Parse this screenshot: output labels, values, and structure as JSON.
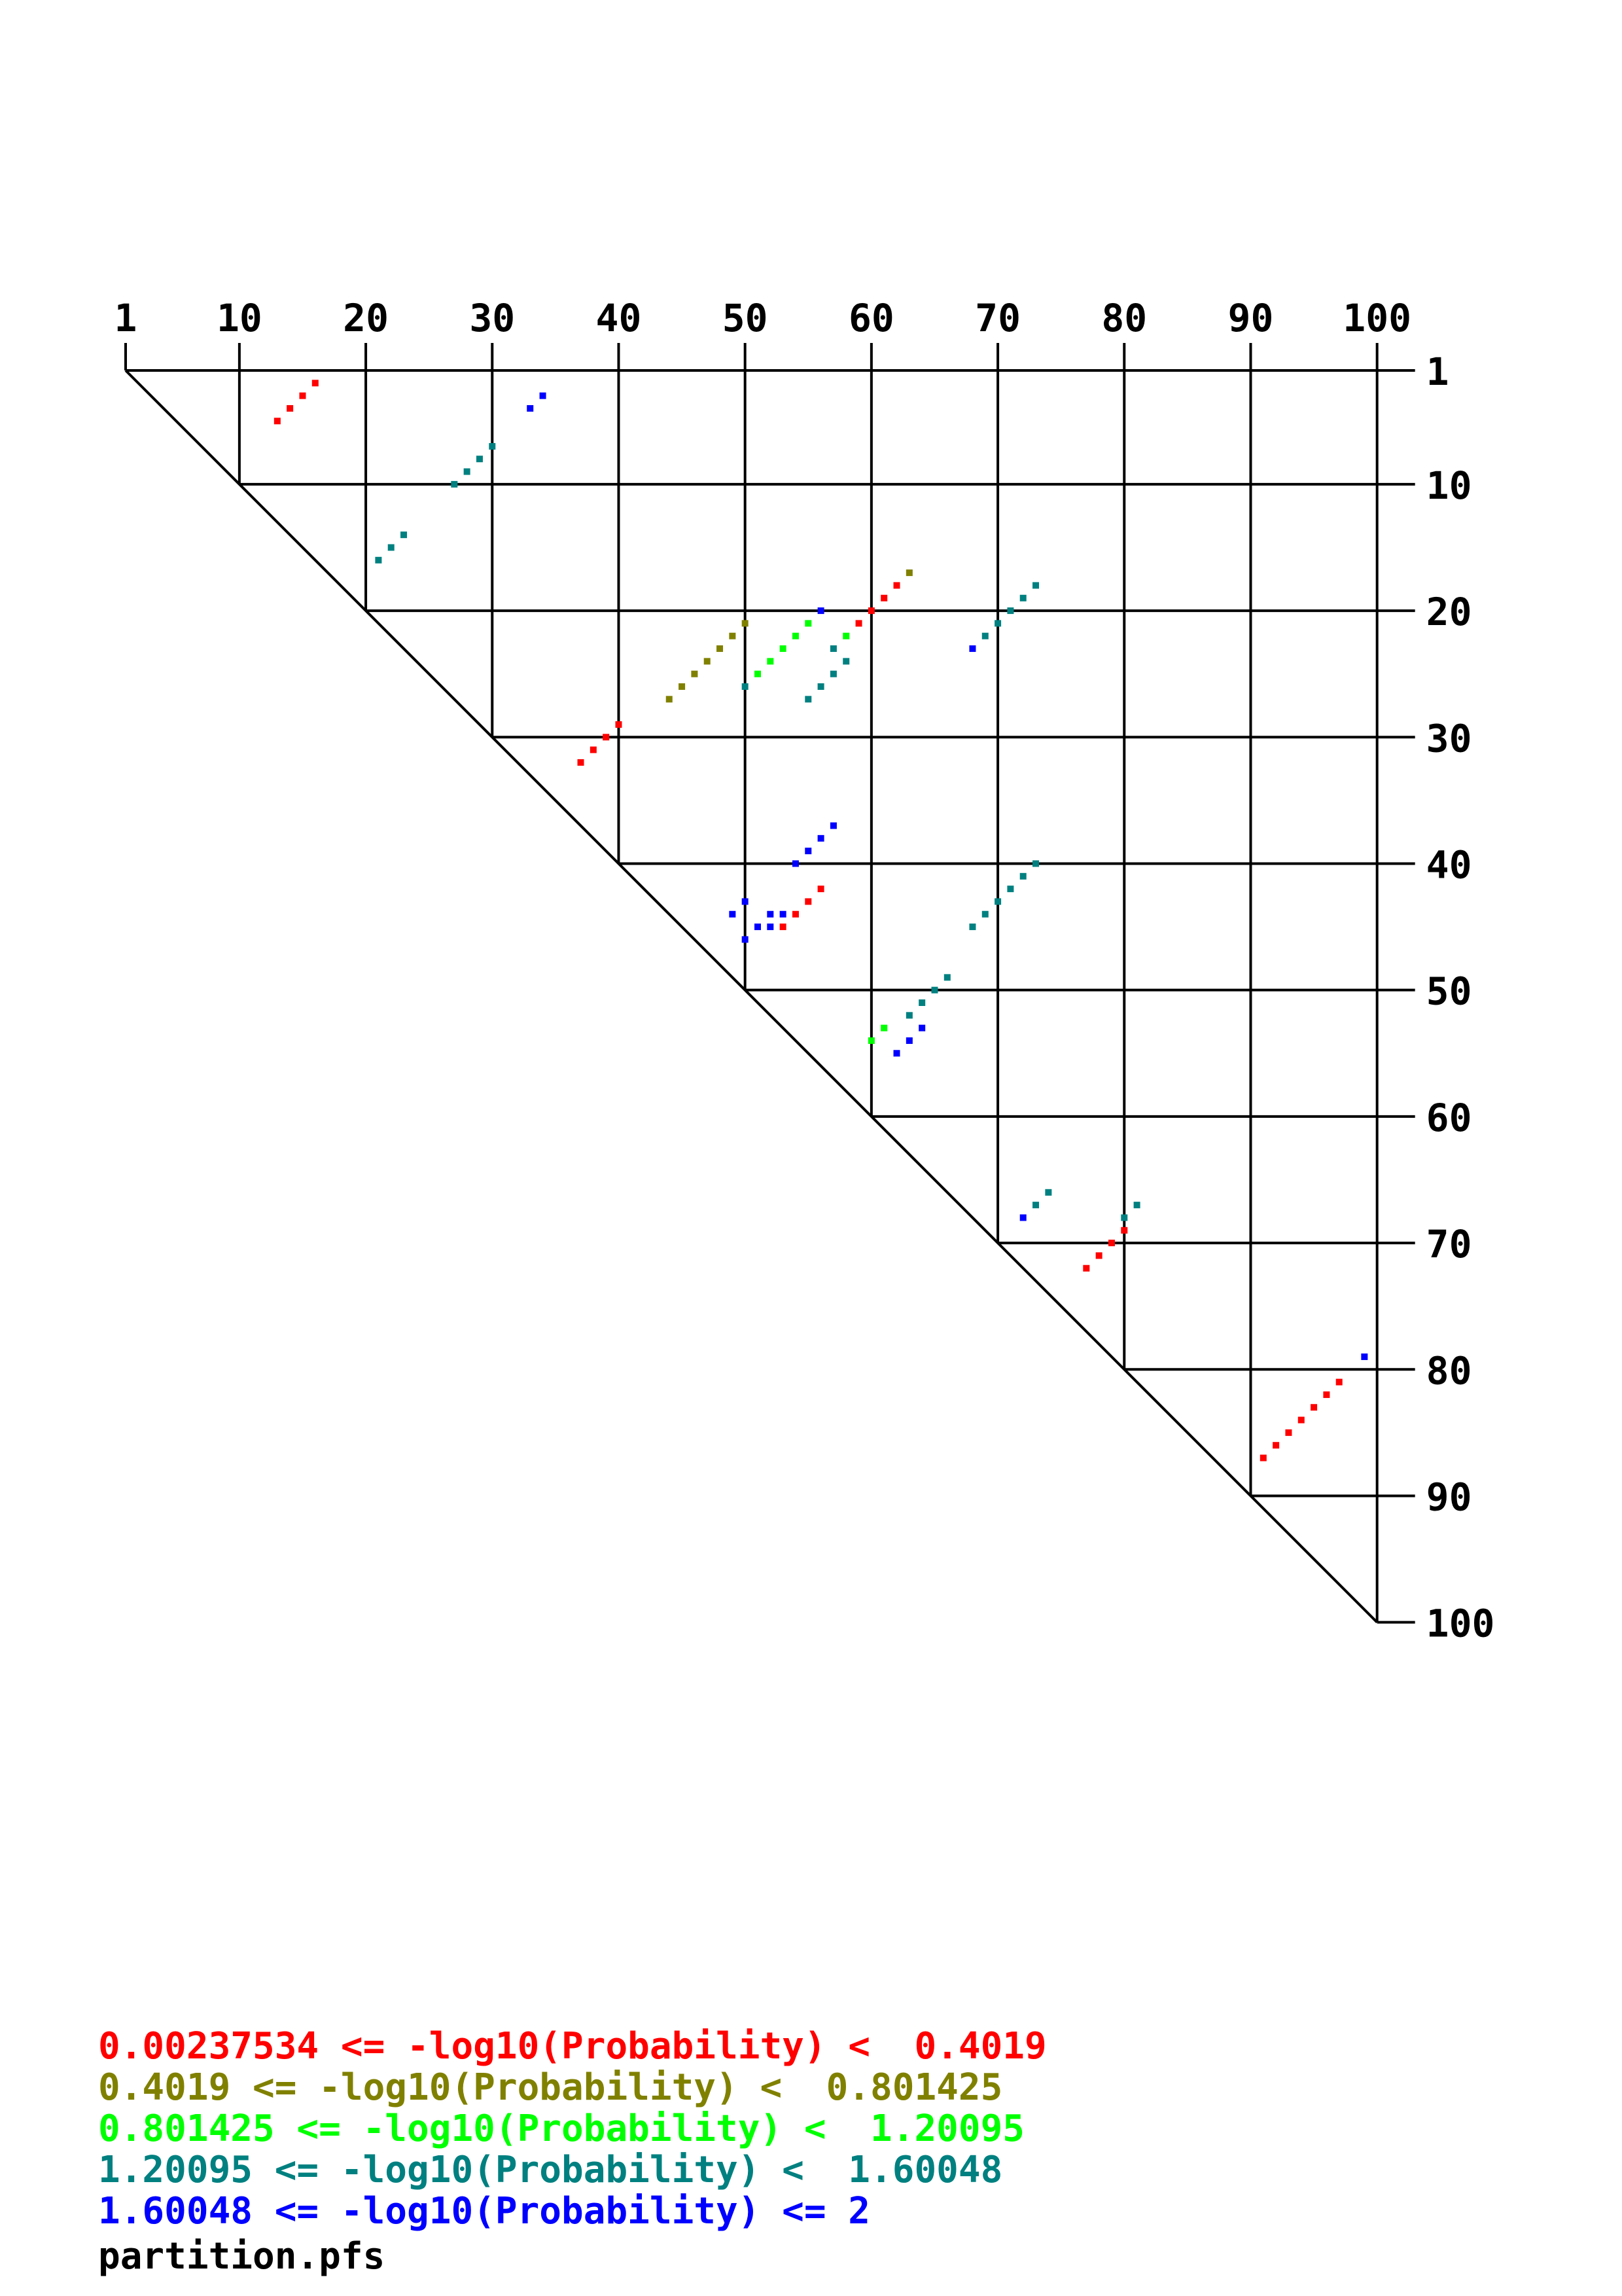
{
  "chart_data": {
    "type": "scatter",
    "subtype": "triangular-dot-plot",
    "x_ticks": [
      1,
      10,
      20,
      30,
      40,
      50,
      60,
      70,
      80,
      90,
      100
    ],
    "y_ticks": [
      1,
      10,
      20,
      30,
      40,
      50,
      60,
      70,
      80,
      90,
      100
    ],
    "x_range": [
      1,
      100
    ],
    "y_range": [
      1,
      100
    ],
    "x_axis_position": "top",
    "y_axis_position": "right",
    "grid": true,
    "legend_position": "bottom-left",
    "bins": [
      {
        "label": "0.00237534 <= -log10(Probability) <  0.4019",
        "color": "#ff0000"
      },
      {
        "label": "0.4019 <= -log10(Probability) <  0.801425",
        "color": "#808000"
      },
      {
        "label": "0.801425 <= -log10(Probability) <  1.20095",
        "color": "#00ff00"
      },
      {
        "label": "1.20095 <= -log10(Probability) <  1.60048",
        "color": "#008080"
      },
      {
        "label": "1.60048 <= -log10(Probability) <= 2",
        "color": "#0000ff"
      }
    ],
    "points_fields": [
      "row_i",
      "col_j",
      "bin"
    ],
    "points": [
      [
        2,
        16,
        0
      ],
      [
        3,
        15,
        0
      ],
      [
        4,
        14,
        0
      ],
      [
        5,
        13,
        0
      ],
      [
        3,
        34,
        4
      ],
      [
        4,
        33,
        4
      ],
      [
        7,
        30,
        3
      ],
      [
        8,
        29,
        3
      ],
      [
        9,
        28,
        3
      ],
      [
        10,
        27,
        3
      ],
      [
        14,
        23,
        3
      ],
      [
        15,
        22,
        3
      ],
      [
        16,
        21,
        3
      ],
      [
        17,
        63,
        1
      ],
      [
        18,
        62,
        0
      ],
      [
        19,
        61,
        0
      ],
      [
        20,
        60,
        0
      ],
      [
        21,
        59,
        0
      ],
      [
        20,
        56,
        4
      ],
      [
        18,
        73,
        3
      ],
      [
        19,
        72,
        3
      ],
      [
        20,
        71,
        3
      ],
      [
        21,
        70,
        3
      ],
      [
        22,
        69,
        3
      ],
      [
        23,
        68,
        4
      ],
      [
        21,
        50,
        1
      ],
      [
        22,
        49,
        1
      ],
      [
        23,
        48,
        1
      ],
      [
        24,
        47,
        1
      ],
      [
        25,
        46,
        1
      ],
      [
        26,
        45,
        1
      ],
      [
        27,
        44,
        1
      ],
      [
        21,
        55,
        2
      ],
      [
        22,
        54,
        2
      ],
      [
        23,
        53,
        2
      ],
      [
        24,
        52,
        2
      ],
      [
        25,
        51,
        2
      ],
      [
        22,
        58,
        2
      ],
      [
        26,
        50,
        3
      ],
      [
        23,
        57,
        3
      ],
      [
        24,
        58,
        3
      ],
      [
        25,
        57,
        3
      ],
      [
        26,
        56,
        3
      ],
      [
        27,
        55,
        3
      ],
      [
        29,
        40,
        0
      ],
      [
        30,
        39,
        0
      ],
      [
        31,
        38,
        0
      ],
      [
        32,
        37,
        0
      ],
      [
        37,
        57,
        4
      ],
      [
        38,
        56,
        4
      ],
      [
        39,
        55,
        4
      ],
      [
        40,
        54,
        4
      ],
      [
        42,
        56,
        0
      ],
      [
        43,
        55,
        0
      ],
      [
        44,
        54,
        0
      ],
      [
        45,
        53,
        0
      ],
      [
        43,
        50,
        4
      ],
      [
        44,
        49,
        4
      ],
      [
        44,
        52,
        4
      ],
      [
        44,
        53,
        4
      ],
      [
        45,
        51,
        4
      ],
      [
        45,
        52,
        4
      ],
      [
        46,
        50,
        4
      ],
      [
        40,
        73,
        3
      ],
      [
        41,
        72,
        3
      ],
      [
        42,
        71,
        3
      ],
      [
        43,
        70,
        3
      ],
      [
        44,
        69,
        3
      ],
      [
        45,
        68,
        3
      ],
      [
        49,
        66,
        3
      ],
      [
        50,
        65,
        3
      ],
      [
        51,
        64,
        3
      ],
      [
        52,
        63,
        3
      ],
      [
        53,
        61,
        2
      ],
      [
        54,
        60,
        2
      ],
      [
        53,
        64,
        4
      ],
      [
        54,
        63,
        4
      ],
      [
        55,
        62,
        4
      ],
      [
        66,
        74,
        3
      ],
      [
        67,
        73,
        3
      ],
      [
        68,
        72,
        4
      ],
      [
        67,
        81,
        3
      ],
      [
        68,
        80,
        3
      ],
      [
        69,
        80,
        0
      ],
      [
        70,
        79,
        0
      ],
      [
        71,
        78,
        0
      ],
      [
        72,
        77,
        0
      ],
      [
        79,
        99,
        4
      ],
      [
        81,
        97,
        0
      ],
      [
        82,
        96,
        0
      ],
      [
        83,
        95,
        0
      ],
      [
        84,
        94,
        0
      ],
      [
        85,
        93,
        0
      ],
      [
        86,
        92,
        0
      ],
      [
        87,
        91,
        0
      ]
    ]
  },
  "footer": {
    "file_name": "partition.pfs"
  }
}
